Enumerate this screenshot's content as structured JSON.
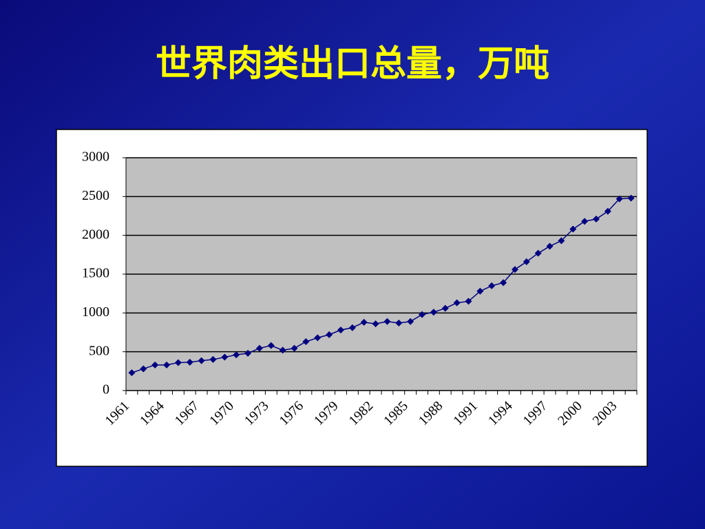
{
  "chart_data": {
    "type": "line",
    "title": "世界肉类出口总量，万吨",
    "categories": [
      "1961",
      null,
      null,
      "1964",
      null,
      null,
      "1967",
      null,
      null,
      "1970",
      null,
      null,
      "1973",
      null,
      null,
      "1976",
      null,
      null,
      "1979",
      null,
      null,
      "1982",
      null,
      null,
      "1985",
      null,
      null,
      "1988",
      null,
      null,
      "1991",
      null,
      null,
      "1994",
      null,
      null,
      "1997",
      null,
      null,
      "2000",
      null,
      null,
      "2003",
      null
    ],
    "values": [
      230,
      280,
      330,
      330,
      360,
      365,
      385,
      400,
      430,
      460,
      480,
      545,
      580,
      520,
      545,
      630,
      680,
      720,
      780,
      810,
      880,
      860,
      890,
      870,
      890,
      980,
      1010,
      1060,
      1130,
      1150,
      1280,
      1350,
      1390,
      1560,
      1660,
      1770,
      1860,
      1930,
      2080,
      2180,
      2210,
      2310,
      2470,
      2480
    ],
    "color": "#000080",
    "ylim": [
      0,
      3000
    ],
    "yticks": [
      0,
      500,
      1000,
      1500,
      2000,
      2500,
      3000
    ],
    "grid": true
  }
}
